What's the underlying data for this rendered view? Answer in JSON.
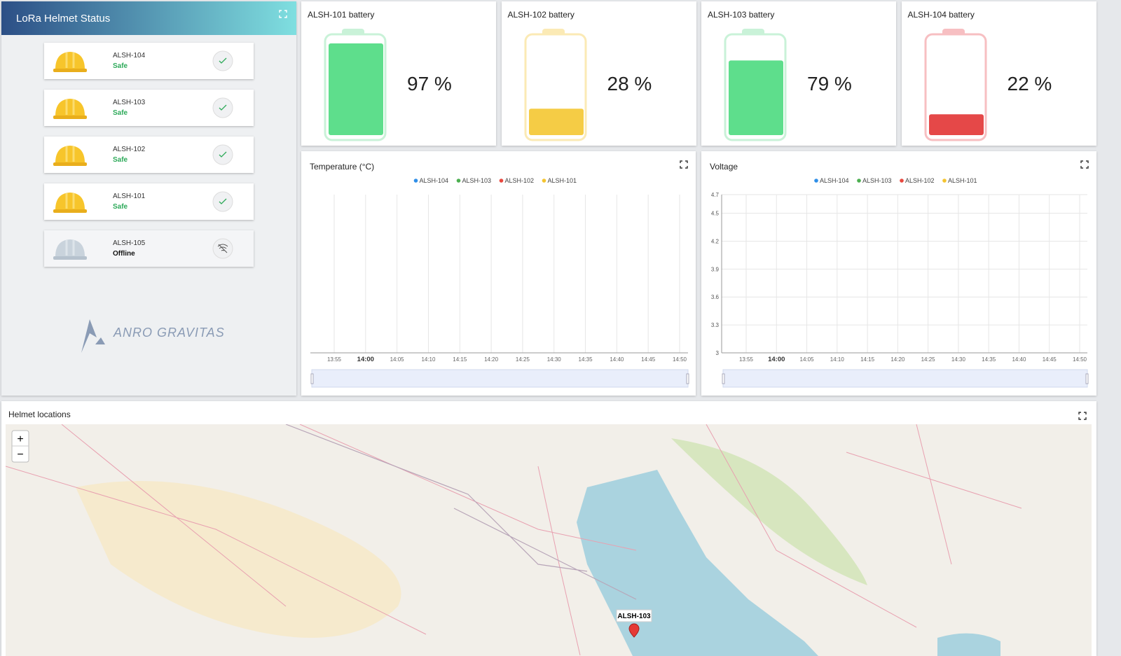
{
  "status_panel": {
    "title": "LoRa Helmet Status",
    "helmets": [
      {
        "name": "ALSH-104",
        "status": "Safe"
      },
      {
        "name": "ALSH-103",
        "status": "Safe"
      },
      {
        "name": "ALSH-102",
        "status": "Safe"
      },
      {
        "name": "ALSH-101",
        "status": "Safe"
      },
      {
        "name": "ALSH-105",
        "status": "Offline"
      }
    ],
    "logo": "ANRO GRAVITAS"
  },
  "batteries": [
    {
      "title": "ALSH-101 battery",
      "value": 97,
      "value_label": "97 %",
      "color": "#5ede8c",
      "outline": "#c9f2d8"
    },
    {
      "title": "ALSH-102 battery",
      "value": 28,
      "value_label": "28 %",
      "color": "#f5cc45",
      "outline": "#fbeab5"
    },
    {
      "title": "ALSH-103 battery",
      "value": 79,
      "value_label": "79 %",
      "color": "#5ede8c",
      "outline": "#c9f2d8"
    },
    {
      "title": "ALSH-104 battery",
      "value": 22,
      "value_label": "22 %",
      "color": "#e54848",
      "outline": "#f7bfc2"
    }
  ],
  "charts": [
    {
      "title": "Temperature (°C)",
      "legend": [
        {
          "name": "ALSH-104",
          "color": "#2f8fe8"
        },
        {
          "name": "ALSH-103",
          "color": "#4caf50"
        },
        {
          "name": "ALSH-102",
          "color": "#e8483f"
        },
        {
          "name": "ALSH-101",
          "color": "#f4c430"
        }
      ],
      "xticks": [
        "13:55",
        "14:00",
        "14:05",
        "14:10",
        "14:15",
        "14:20",
        "14:25",
        "14:30",
        "14:35",
        "14:40",
        "14:45",
        "14:50"
      ],
      "vgrid": true
    },
    {
      "title": "Voltage",
      "legend": [
        {
          "name": "ALSH-104",
          "color": "#2f8fe8"
        },
        {
          "name": "ALSH-103",
          "color": "#4caf50"
        },
        {
          "name": "ALSH-102",
          "color": "#e8483f"
        },
        {
          "name": "ALSH-101",
          "color": "#f4c430"
        }
      ],
      "xticks": [
        "13:55",
        "14:00",
        "14:05",
        "14:10",
        "14:15",
        "14:20",
        "14:25",
        "14:30",
        "14:35",
        "14:40",
        "14:45",
        "14:50"
      ],
      "vgrid": true,
      "ylim": [
        3,
        4.7
      ],
      "yticks": [
        3,
        3.3,
        3.6,
        3.9,
        4.2,
        4.5,
        4.7
      ]
    }
  ],
  "map": {
    "title": "Helmet locations",
    "zoom_in": "+",
    "zoom_out": "−",
    "marker": "ALSH-103"
  }
}
